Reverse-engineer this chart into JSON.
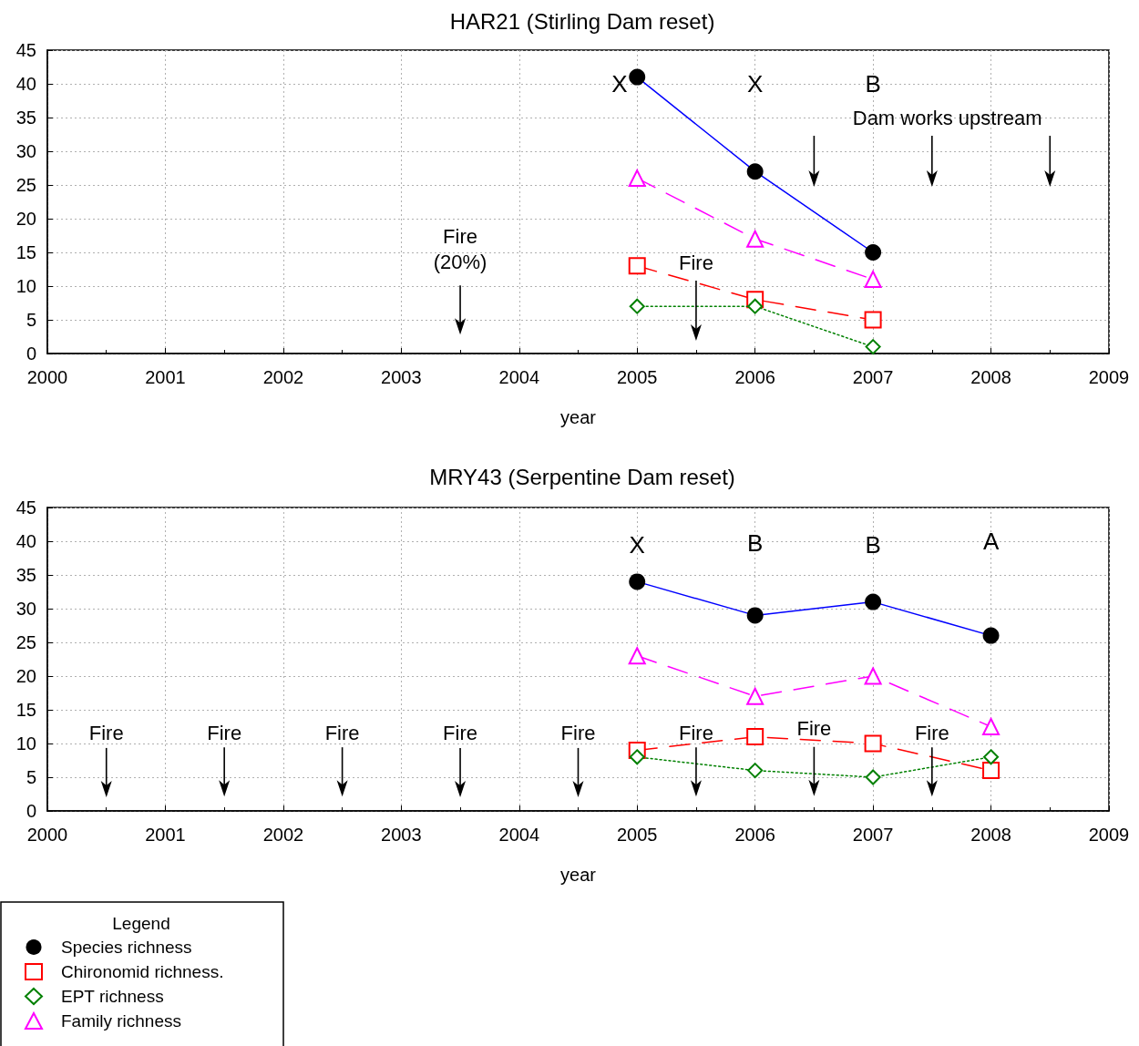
{
  "chart_data": [
    {
      "type": "line",
      "title": "HAR21 (Stirling Dam reset)",
      "xlabel": "year",
      "xlim": [
        2000,
        2009
      ],
      "xticks": [
        2000,
        2001,
        2002,
        2003,
        2004,
        2005,
        2006,
        2007,
        2008,
        2009
      ],
      "ylim": [
        0,
        45
      ],
      "yticks": [
        0,
        5,
        10,
        15,
        20,
        25,
        30,
        35,
        40,
        45
      ],
      "grid": true,
      "legend": false,
      "x": [
        2005,
        2006,
        2007
      ],
      "series": [
        {
          "color": "#0000ff",
          "colors": [
            "#000000",
            "#000000",
            "#000000"
          ],
          "marker": "circle",
          "line_style": "solid",
          "values": [
            41,
            27,
            15
          ]
        },
        {
          "color": "#ff0000",
          "marker": "square",
          "line_style": "dashed",
          "values": [
            13,
            8,
            5
          ]
        },
        {
          "color": "#008000",
          "marker": "diamond",
          "line_style": "dotted",
          "values": [
            7,
            7,
            1
          ]
        },
        {
          "color": "#ff00ff",
          "marker": "triangle",
          "line_style": "dashed",
          "values": [
            26,
            17,
            11
          ]
        }
      ],
      "annotations": [
        "X",
        "X",
        "B",
        "Fire\n(20%)",
        "Fire",
        "Dam works upstream"
      ]
    },
    {
      "type": "line",
      "title": "MRY43 (Serpentine Dam reset)",
      "xlabel": "year",
      "xlim": [
        2000,
        2009
      ],
      "xticks": [
        2000,
        2001,
        2002,
        2003,
        2004,
        2005,
        2006,
        2007,
        2008,
        2009
      ],
      "ylim": [
        0,
        45
      ],
      "yticks": [
        0,
        5,
        10,
        15,
        20,
        25,
        30,
        35,
        40,
        45
      ],
      "grid": true,
      "legend": "bottom left",
      "legend_title": "Legend",
      "x": [
        2005,
        2006,
        2007,
        2008
      ],
      "series": [
        {
          "name": "Species richness",
          "color": "#0000ff",
          "colors": [
            "#000000",
            "#000000",
            "#000000",
            "#000000"
          ],
          "marker": "circle",
          "line_style": "solid",
          "values": [
            34,
            29,
            31,
            26
          ]
        },
        {
          "name": "Chironomid richness.",
          "color": "#ff0000",
          "marker": "square",
          "line_style": "dashed",
          "values": [
            9,
            11,
            10,
            6
          ]
        },
        {
          "name": "EPT richness",
          "color": "#008000",
          "marker": "diamond",
          "line_style": "dotted",
          "values": [
            8,
            6,
            5,
            8
          ]
        },
        {
          "name": "Family richness",
          "color": "#ff00ff",
          "marker": "triangle",
          "line_style": "dashed",
          "values": [
            23,
            17,
            20,
            12.5
          ]
        }
      ],
      "annotations": [
        "X",
        "B",
        "B",
        "A",
        "Fire",
        "Fire",
        "Fire",
        "Fire",
        "Fire",
        "Fire",
        "Fire",
        "Fire"
      ]
    }
  ]
}
